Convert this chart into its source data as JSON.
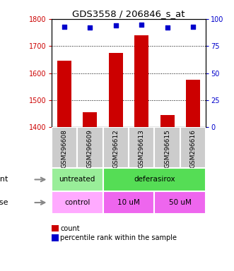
{
  "title": "GDS3558 / 206846_s_at",
  "samples": [
    "GSM296608",
    "GSM296609",
    "GSM296612",
    "GSM296613",
    "GSM296615",
    "GSM296616"
  ],
  "counts": [
    1645,
    1455,
    1675,
    1740,
    1445,
    1575
  ],
  "percentiles": [
    93,
    92,
    94,
    95,
    92,
    93
  ],
  "ylim_left": [
    1400,
    1800
  ],
  "ylim_right": [
    0,
    100
  ],
  "yticks_left": [
    1400,
    1500,
    1600,
    1700,
    1800
  ],
  "yticks_right": [
    0,
    25,
    50,
    75,
    100
  ],
  "bar_color": "#cc0000",
  "dot_color": "#0000cc",
  "bar_width": 0.55,
  "agent_labels": [
    {
      "text": "untreated",
      "start": 0,
      "end": 2,
      "color": "#99ee99"
    },
    {
      "text": "deferasirox",
      "start": 2,
      "end": 6,
      "color": "#55dd55"
    }
  ],
  "dose_labels": [
    {
      "text": "control",
      "start": 0,
      "end": 2,
      "color": "#ffaaff"
    },
    {
      "text": "10 uM",
      "start": 2,
      "end": 4,
      "color": "#ee66ee"
    },
    {
      "text": "50 uM",
      "start": 4,
      "end": 6,
      "color": "#ee66ee"
    }
  ],
  "legend_count_color": "#cc0000",
  "legend_percentile_color": "#0000cc",
  "tick_label_fontsize": 7,
  "title_fontsize": 9.5,
  "axis_label_color_left": "#cc0000",
  "axis_label_color_right": "#0000cc",
  "xticklabel_bg": "#cccccc",
  "xticklabel_fontsize": 6.5,
  "row_label_fontsize": 8,
  "legend_fontsize": 7
}
